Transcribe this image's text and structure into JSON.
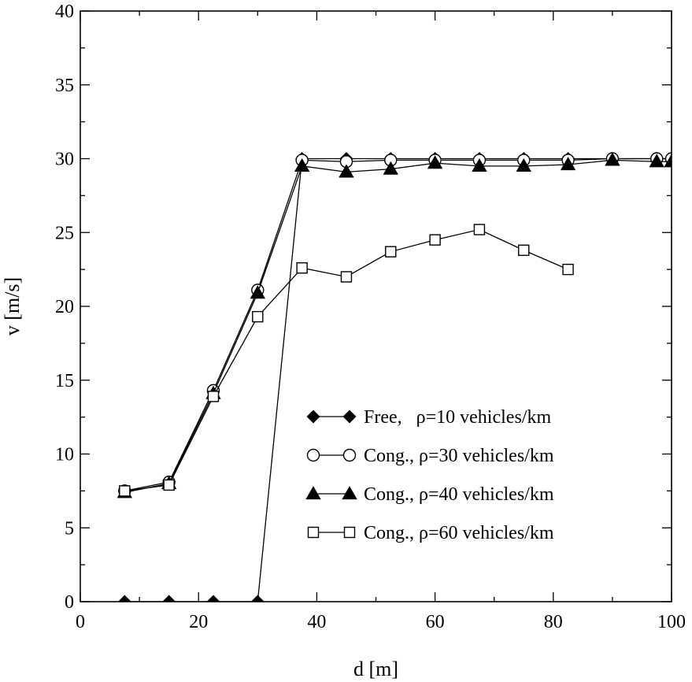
{
  "chart_data": {
    "type": "line",
    "title": "",
    "xlabel": "d [m]",
    "ylabel": "v [m/s]",
    "xlim": [
      0,
      100
    ],
    "ylim": [
      0,
      40
    ],
    "xticks": [
      0,
      20,
      40,
      60,
      80,
      100
    ],
    "yticks": [
      0,
      5,
      10,
      15,
      20,
      25,
      30,
      35,
      40
    ],
    "grid": false,
    "legend_position": "center-right",
    "series": [
      {
        "name": "Free,   ρ=10 vehicles/km",
        "marker": "diamond-filled",
        "x": [
          7.5,
          15,
          22.5,
          30,
          37.5,
          45,
          52.5,
          60,
          67.5,
          75,
          82.5,
          90,
          97.5,
          100
        ],
        "y": [
          0,
          0,
          0,
          0,
          30,
          30,
          30,
          30,
          30,
          30,
          30,
          30,
          30,
          30
        ]
      },
      {
        "name": "Cong., ρ=30 vehicles/km",
        "marker": "circle-open",
        "x": [
          7.5,
          15,
          22.5,
          30,
          37.5,
          45,
          52.5,
          60,
          67.5,
          75,
          82.5,
          90,
          97.5,
          100
        ],
        "y": [
          7.5,
          8.1,
          14.3,
          21.1,
          29.9,
          29.8,
          29.9,
          29.9,
          29.9,
          29.9,
          29.9,
          30.0,
          30.0,
          30.0
        ]
      },
      {
        "name": "Cong., ρ=40 vehicles/km",
        "marker": "triangle-filled",
        "x": [
          7.5,
          15,
          22.5,
          30,
          37.5,
          45,
          52.5,
          60,
          67.5,
          75,
          82.5,
          90,
          97.5,
          100
        ],
        "y": [
          7.4,
          8.0,
          14.1,
          20.9,
          29.5,
          29.1,
          29.3,
          29.7,
          29.5,
          29.5,
          29.6,
          29.9,
          29.8,
          29.8
        ]
      },
      {
        "name": "Cong., ρ=60 vehicles/km",
        "marker": "square-open",
        "x": [
          7.5,
          15,
          22.5,
          30,
          37.5,
          45,
          52.5,
          60,
          67.5,
          75,
          82.5
        ],
        "y": [
          7.5,
          7.9,
          13.9,
          19.3,
          22.6,
          22.0,
          23.7,
          24.5,
          25.2,
          23.8,
          22.5
        ]
      }
    ]
  }
}
